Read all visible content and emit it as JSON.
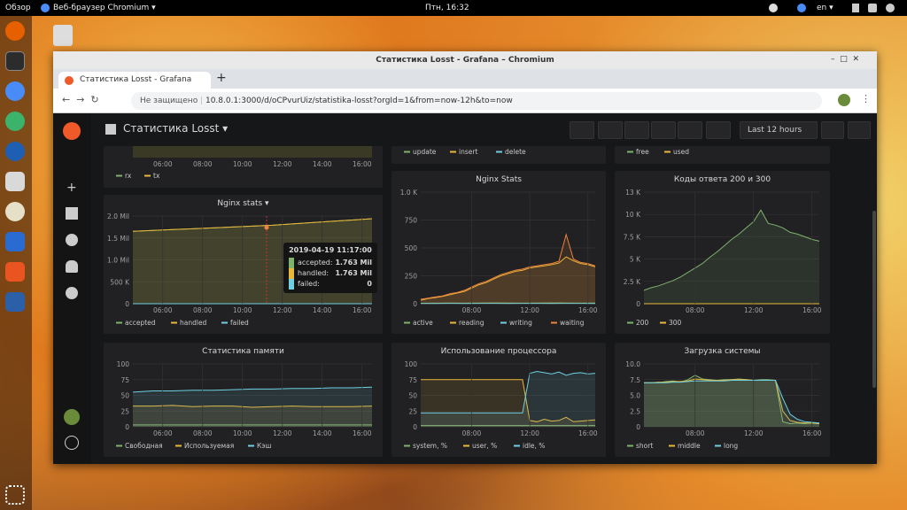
{
  "desktop": {
    "topbar": {
      "activities": "Обзор",
      "app": "Веб-браузер Chromium ▾",
      "clock": "Птн, 16:32",
      "lang": "en ▾"
    }
  },
  "browser": {
    "window_title": "Статистика Losst - Grafana – Chromium",
    "tab": "Статистика Losst - Grafana",
    "security": "Не защищено",
    "url": "10.8.0.1:3000/d/oCPvurUiz/statistika-losst?orgId=1&from=now-12h&to=now"
  },
  "dashboard": {
    "title": "Статистика Losst ▾",
    "time_range": "Last 12 hours",
    "panels": [
      {
        "xlim": [
          4.5,
          16.5
        ],
        "xticks": [
          {
            "value": 6,
            "label": "06:00"
          },
          {
            "value": 8,
            "label": "08:00"
          },
          {
            "value": 10,
            "label": "10:00"
          },
          {
            "value": 12,
            "label": "12:00"
          },
          {
            "value": 14,
            "label": "14:00"
          },
          {
            "value": 16,
            "label": "16:00"
          }
        ],
        "series": [
          {
            "name": "rx",
            "color": "#7eb26d"
          },
          {
            "name": "tx",
            "color": "#eab839"
          }
        ]
      },
      {
        "series": [
          {
            "name": "update",
            "color": "#7eb26d"
          },
          {
            "name": "insert",
            "color": "#eab839"
          },
          {
            "name": "delete",
            "color": "#6ed0e0"
          }
        ]
      },
      {
        "series": [
          {
            "name": "free",
            "color": "#7eb26d"
          },
          {
            "name": "used",
            "color": "#eab839"
          }
        ]
      },
      {
        "title": "Nginx stats ▾",
        "xlim": [
          4.5,
          16.5
        ],
        "ylim": [
          0,
          2000000
        ],
        "xticks": [
          {
            "value": 6,
            "label": "06:00"
          },
          {
            "value": 8,
            "label": "08:00"
          },
          {
            "value": 10,
            "label": "10:00"
          },
          {
            "value": 12,
            "label": "12:00"
          },
          {
            "value": 14,
            "label": "14:00"
          },
          {
            "value": 16,
            "label": "16:00"
          }
        ],
        "yticks": [
          0,
          {
            "value": 500000,
            "label": "500 K"
          },
          {
            "value": 1000000,
            "label": "1.0 Mil"
          },
          {
            "value": 1500000,
            "label": "1.5 Mil"
          },
          {
            "value": 2000000,
            "label": "2.0 Mil"
          }
        ],
        "series": [
          {
            "name": "accepted",
            "color": "#7eb26d",
            "values": [
              1650000,
              1670000,
              1690000,
              1710000,
              1730000,
              1750000,
              1770000,
              1790000,
              1820000,
              1850000,
              1880000,
              1910000,
              1940000
            ]
          },
          {
            "name": "handled",
            "color": "#eab839",
            "values": [
              1650000,
              1670000,
              1690000,
              1710000,
              1730000,
              1750000,
              1770000,
              1790000,
              1820000,
              1850000,
              1880000,
              1910000,
              1940000
            ]
          },
          {
            "name": "failed",
            "color": "#6ed0e0",
            "values": [
              0,
              0,
              0,
              0,
              0,
              0,
              0,
              0,
              0,
              0,
              0,
              0,
              0
            ]
          }
        ],
        "tooltip": {
          "time": "2019-04-19 11:17:00",
          "rows": [
            {
              "name": "accepted:",
              "value": "1.763 Mil"
            },
            {
              "name": "handled:",
              "value": "1.763 Mil"
            },
            {
              "name": "failed:",
              "value": "0"
            }
          ]
        }
      },
      {
        "title": "Nginx Stats",
        "xlim": [
          4.5,
          16.5
        ],
        "ylim": [
          0,
          1000
        ],
        "xticks": [
          {
            "value": 8,
            "label": "08:00"
          },
          {
            "value": 12,
            "label": "12:00"
          },
          {
            "value": 16,
            "label": "16:00"
          }
        ],
        "yticks": [
          0,
          250,
          500,
          750,
          {
            "value": 1000,
            "label": "1.0 K"
          }
        ],
        "series": [
          {
            "name": "active",
            "color": "#7eb26d",
            "values": [
              4,
              5,
              6,
              5,
              6,
              7,
              6,
              5,
              6,
              7,
              6,
              5,
              6
            ]
          },
          {
            "name": "reading",
            "color": "#eab839",
            "values": [
              30,
              45,
              55,
              65,
              80,
              95,
              110,
              140,
              170,
              190,
              220,
              250,
              270,
              290,
              300,
              320,
              330,
              340,
              350,
              365,
              420,
              385,
              360,
              350,
              330
            ]
          },
          {
            "name": "writing",
            "color": "#6ed0e0",
            "values": [
              2,
              2,
              3,
              2,
              3,
              3,
              2,
              3,
              3,
              2,
              3,
              3,
              2
            ]
          },
          {
            "name": "waiting",
            "color": "#ef843c",
            "values": [
              40,
              50,
              60,
              70,
              90,
              100,
              120,
              150,
              180,
              200,
              230,
              260,
              280,
              300,
              310,
              330,
              340,
              350,
              360,
              380,
              620,
              400,
              370,
              360,
              340
            ]
          }
        ]
      },
      {
        "title": "Коды ответа 200 и 300",
        "xlim": [
          4.5,
          16.5
        ],
        "ylim": [
          0,
          12500
        ],
        "xticks": [
          {
            "value": 8,
            "label": "08:00"
          },
          {
            "value": 12,
            "label": "12:00"
          },
          {
            "value": 16,
            "label": "16:00"
          }
        ],
        "yticks": [
          0,
          {
            "value": 2500,
            "label": "2.5 K"
          },
          {
            "value": 5000,
            "label": "5 K"
          },
          {
            "value": 7500,
            "label": "7.5 K"
          },
          {
            "value": 10000,
            "label": "10 K"
          },
          {
            "value": 12500,
            "label": "13 K"
          }
        ],
        "series": [
          {
            "name": "200",
            "color": "#7eb26d",
            "values": [
              1500,
              1800,
              2000,
              2300,
              2600,
              3000,
              3500,
              4000,
              4500,
              5200,
              5800,
              6500,
              7200,
              7800,
              8500,
              9200,
              10500,
              9000,
              8800,
              8500,
              8000,
              7800,
              7500,
              7200,
              7000
            ]
          },
          {
            "name": "300",
            "color": "#eab839",
            "values": [
              0,
              0,
              0,
              0,
              0,
              0,
              0,
              0,
              0,
              0,
              0,
              0,
              0
            ]
          }
        ]
      },
      {
        "title": "Статистика памяти",
        "xlim": [
          4.5,
          16.5
        ],
        "ylim": [
          0,
          100
        ],
        "xticks": [
          {
            "value": 6,
            "label": "06:00"
          },
          {
            "value": 8,
            "label": "08:00"
          },
          {
            "value": 10,
            "label": "10:00"
          },
          {
            "value": 12,
            "label": "12:00"
          },
          {
            "value": 14,
            "label": "14:00"
          },
          {
            "value": 16,
            "label": "16:00"
          }
        ],
        "yticks": [
          0,
          25,
          50,
          75,
          100
        ],
        "series": [
          {
            "name": "Свободная",
            "color": "#7eb26d",
            "values": [
              3,
              3,
              3,
              3,
              3,
              3,
              3,
              3,
              3,
              3,
              3,
              3,
              3
            ]
          },
          {
            "name": "Используемая",
            "color": "#eab839",
            "values": [
              33,
              33,
              34,
              32,
              33,
              33,
              31,
              32,
              33,
              32,
              32,
              32,
              33
            ]
          },
          {
            "name": "Кэш",
            "color": "#6ed0e0",
            "values": [
              55,
              57,
              57,
              58,
              58,
              59,
              60,
              60,
              61,
              61,
              62,
              62,
              63
            ]
          }
        ]
      },
      {
        "title": "Использование процессора",
        "xlim": [
          4.5,
          16.5
        ],
        "ylim": [
          0,
          100
        ],
        "xticks": [
          {
            "value": 8,
            "label": "08:00"
          },
          {
            "value": 12,
            "label": "12:00"
          },
          {
            "value": 16,
            "label": "16:00"
          }
        ],
        "yticks": [
          0,
          25,
          50,
          75,
          100
        ],
        "series": [
          {
            "name": "system, %",
            "color": "#7eb26d",
            "values": [
              2,
              2,
              2,
              2,
              2,
              2,
              2,
              2,
              2,
              2,
              2,
              2,
              2
            ]
          },
          {
            "name": "user, %",
            "color": "#eab839",
            "values": [
              75,
              75,
              75,
              75,
              75,
              75,
              75,
              75,
              75,
              75,
              75,
              75,
              75,
              75,
              75,
              10,
              8,
              12,
              9,
              10,
              15,
              8,
              9,
              10,
              11
            ]
          },
          {
            "name": "idle, %",
            "color": "#6ed0e0",
            "values": [
              22,
              22,
              22,
              22,
              22,
              22,
              22,
              22,
              22,
              22,
              22,
              22,
              22,
              22,
              22,
              85,
              88,
              86,
              84,
              87,
              82,
              85,
              86,
              84,
              85
            ]
          }
        ]
      },
      {
        "title": "Загрузка системы",
        "xlim": [
          4.5,
          16.5
        ],
        "ylim": [
          0,
          10
        ],
        "xticks": [
          {
            "value": 8,
            "label": "08:00"
          },
          {
            "value": 12,
            "label": "12:00"
          },
          {
            "value": 16,
            "label": "16:00"
          }
        ],
        "yticks": [
          0,
          2.5,
          {
            "value": 5,
            "label": "5.0"
          },
          7.5,
          {
            "value": 10,
            "label": "10.0"
          }
        ],
        "series": [
          {
            "name": "short",
            "color": "#7eb26d",
            "values": [
              7,
              7,
              7,
              7.2,
              7.3,
              7.1,
              7.5,
              8.2,
              7.6,
              7.5,
              7.4,
              7.5,
              7.5,
              7.6,
              7.5,
              7.4,
              7.5,
              7.5,
              7.4,
              0.8,
              0.5,
              0.6,
              0.5,
              0.6,
              0.5
            ]
          },
          {
            "name": "middle",
            "color": "#eab839",
            "values": [
              7,
              7,
              7.1,
              7.1,
              7.2,
              7.2,
              7.3,
              7.6,
              7.5,
              7.4,
              7.4,
              7.4,
              7.5,
              7.5,
              7.5,
              7.4,
              7.4,
              7.4,
              7.4,
              2.5,
              1,
              0.7,
              0.6,
              0.6,
              0.5
            ]
          },
          {
            "name": "long",
            "color": "#6ed0e0",
            "values": [
              7,
              7,
              7,
              7,
              7.1,
              7.1,
              7.2,
              7.3,
              7.3,
              7.3,
              7.3,
              7.3,
              7.4,
              7.4,
              7.4,
              7.4,
              7.4,
              7.4,
              7.4,
              4.5,
              2,
              1.2,
              0.8,
              0.7,
              0.6
            ]
          }
        ]
      }
    ]
  }
}
